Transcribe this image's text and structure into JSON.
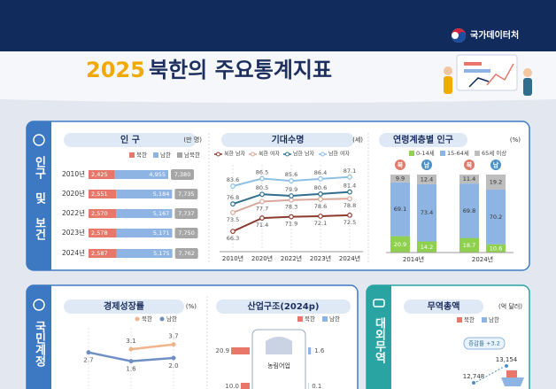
{
  "header": {
    "org": "국가데이터처",
    "title_year": "2025",
    "title_main": "북한의 주요통계지표"
  },
  "population_health": {
    "label": "인구 및 보건",
    "population": {
      "title": "인 구",
      "unit": "(만 명)",
      "legend": [
        "북한",
        "남한",
        "남북한"
      ],
      "colors": [
        "#e8776a",
        "#8db4e2",
        "#a6a6a6"
      ],
      "categories": [
        "2010년",
        "2020년",
        "2022년",
        "2023년",
        "2024년"
      ],
      "north": [
        2425,
        2551,
        2570,
        2578,
        2587
      ],
      "north_labels": [
        "2,425",
        "2,551",
        "2,570",
        "2,578",
        "2,587"
      ],
      "south": [
        4955,
        5184,
        5167,
        5171,
        5175
      ],
      "south_labels": [
        "4,955",
        "5,184",
        "5,167",
        "5,171",
        "5,175"
      ],
      "total": [
        7380,
        7735,
        7737,
        7750,
        7762
      ],
      "total_labels": [
        "7,380",
        "7,735",
        "7,737",
        "7,750",
        "7,762"
      ]
    },
    "life_expectancy": {
      "title": "기대수명",
      "unit": "(세)",
      "x": [
        "2010년",
        "2020년",
        "2022년",
        "2023년",
        "2024년"
      ],
      "series": [
        {
          "name": "북한 남자",
          "color": "#8b3a2e",
          "values": [
            66.3,
            71.4,
            71.9,
            72.1,
            72.5
          ]
        },
        {
          "name": "북한 여자",
          "color": "#d9a79a",
          "values": [
            73.5,
            77.7,
            78.3,
            78.6,
            78.8
          ]
        },
        {
          "name": "남한 남자",
          "color": "#2f6e8e",
          "values": [
            76.8,
            80.5,
            79.9,
            80.6,
            81.4
          ]
        },
        {
          "name": "남한 여자",
          "color": "#8ec0e6",
          "values": [
            83.6,
            86.5,
            85.6,
            86.4,
            87.1
          ]
        }
      ]
    },
    "age_structure": {
      "title": "연령계층별 인구",
      "unit": "(%)",
      "legend": [
        "0-14세",
        "15-64세",
        "65세 이상"
      ],
      "colors": [
        "#8fd14f",
        "#8db4e2",
        "#bdbdbd"
      ],
      "groups": [
        {
          "label": "2014년",
          "bars": [
            {
              "badge": "북",
              "values": [
                20.9,
                69.1,
                9.9
              ]
            },
            {
              "badge": "남",
              "values": [
                14.2,
                73.4,
                12.4
              ]
            }
          ]
        },
        {
          "label": "2024년",
          "bars": [
            {
              "badge": "북",
              "values": [
                18.7,
                69.8,
                11.4
              ]
            },
            {
              "badge": "남",
              "values": [
                10.6,
                70.2,
                19.2
              ]
            }
          ]
        }
      ]
    }
  },
  "national_accounts": {
    "label": "국민계정",
    "growth": {
      "title": "경제성장률",
      "unit": "(%)",
      "series": [
        {
          "name": "북한",
          "color": "#f0b48a",
          "values": [
            null,
            3.1,
            3.7
          ]
        },
        {
          "name": "남한",
          "color": "#6f8fc4",
          "values": [
            2.7,
            1.6,
            2.0
          ],
          "value_labels": [
            "2.7",
            "1.6",
            "2.0"
          ]
        }
      ]
    },
    "industry": {
      "title": "산업구조(2024p)",
      "legend": [
        "북한",
        "남한"
      ],
      "colors": [
        "#e8776a",
        "#8db4e2"
      ],
      "rows": [
        {
          "label": "농림어업",
          "north": 20.9,
          "south": 1.6
        },
        {
          "north": 10.0,
          "north_label": "10.0",
          "south": 0.1
        }
      ]
    }
  },
  "trade": {
    "label": "대외무역",
    "title": "무역총액",
    "unit": "(억 달러)",
    "legend": [
      "북한",
      "남한"
    ],
    "annotation": "증감률 +3.2",
    "values": [
      12748,
      13154
    ],
    "value_labels": [
      "12,748",
      "13,154"
    ]
  }
}
